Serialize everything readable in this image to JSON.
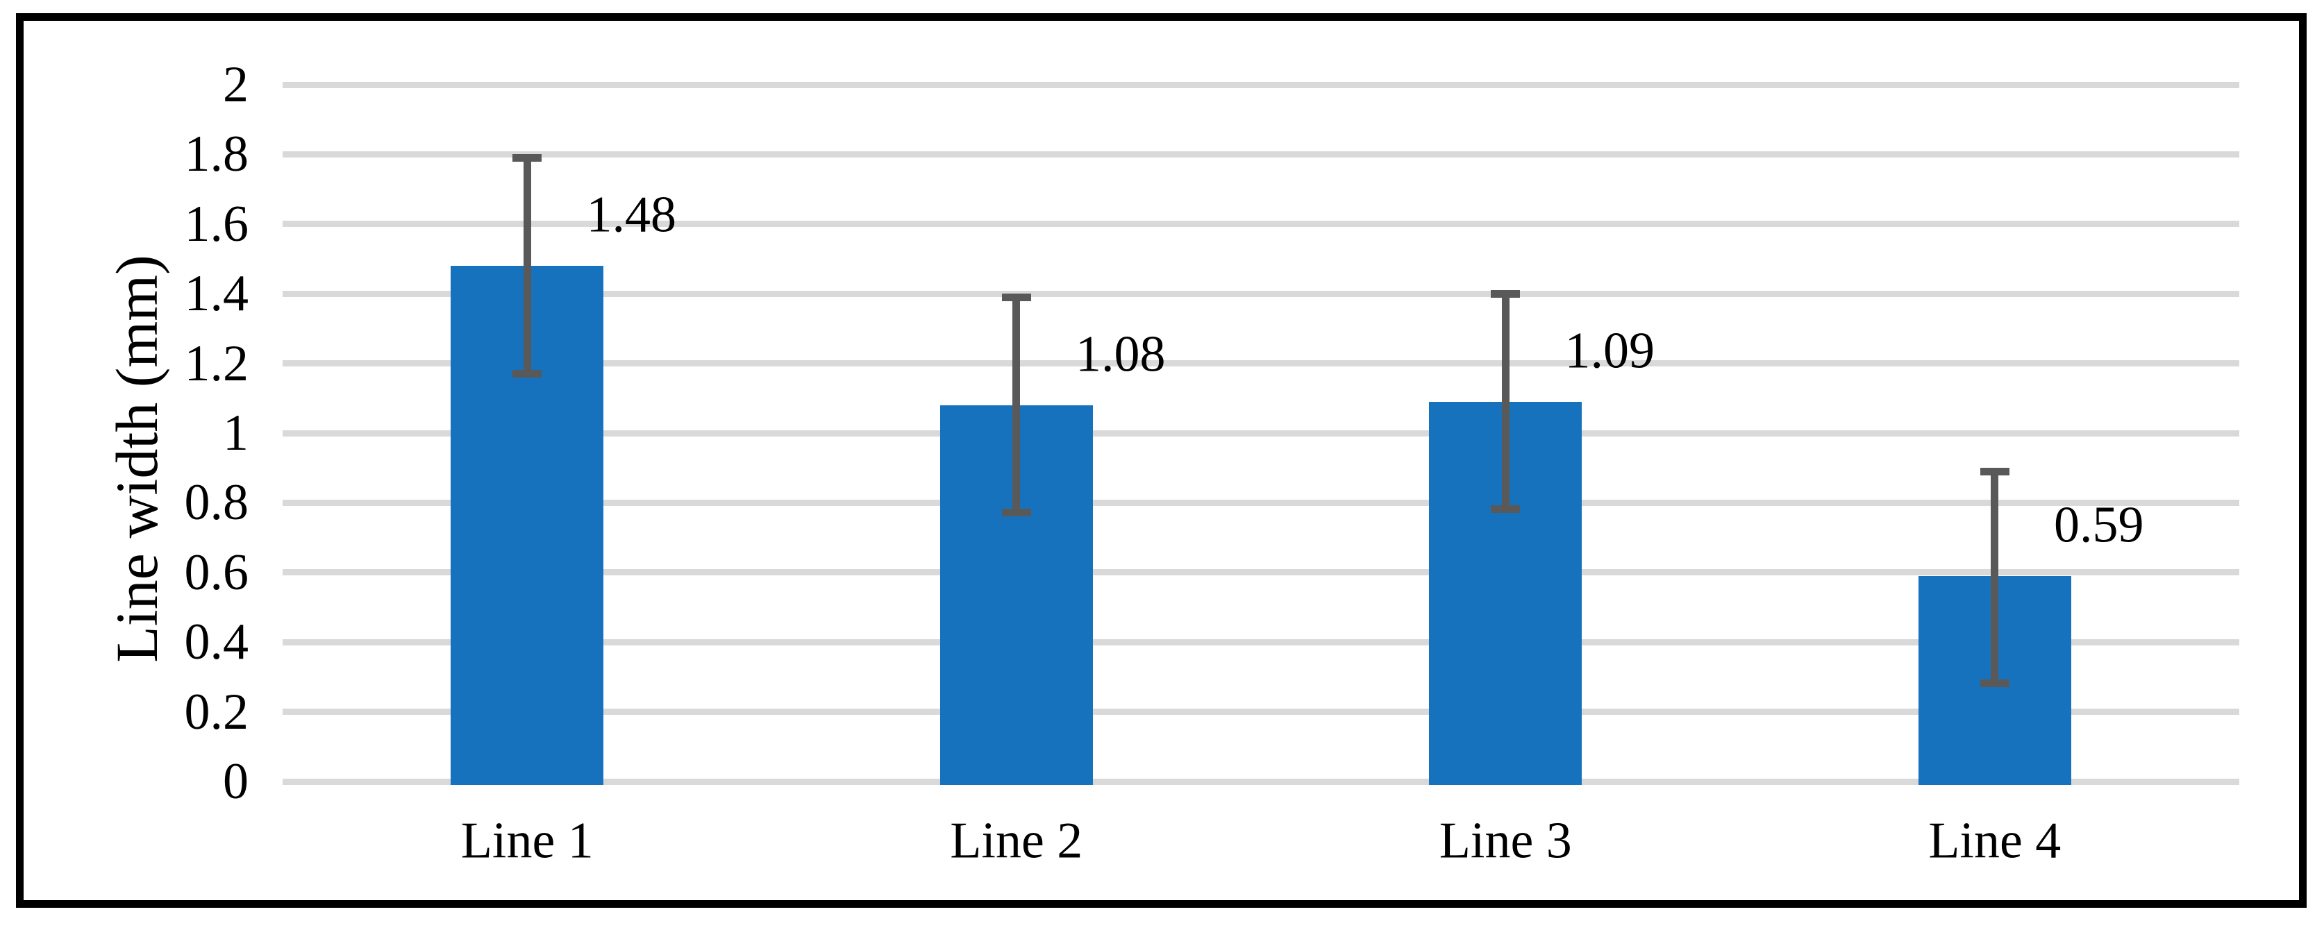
{
  "chart_data": {
    "type": "bar",
    "title": "",
    "categories": [
      "Line 1",
      "Line 2",
      "Line 3",
      "Line 4"
    ],
    "values": [
      1.48,
      1.08,
      1.09,
      0.59
    ],
    "data_labels": [
      "1.48",
      "1.08",
      "1.09",
      "0.59"
    ],
    "error_bars": {
      "upper": [
        1.8,
        1.4,
        1.41,
        0.9
      ],
      "lower": [
        1.16,
        0.76,
        0.77,
        0.27
      ]
    },
    "xlabel": "",
    "ylabel": "Line width (mm)",
    "ylim": [
      0,
      2
    ],
    "yticks": [
      {
        "value": 0,
        "label": "0"
      },
      {
        "value": 0.2,
        "label": "0.2"
      },
      {
        "value": 0.4,
        "label": "0.4"
      },
      {
        "value": 0.6,
        "label": "0.6"
      },
      {
        "value": 0.8,
        "label": "0.8"
      },
      {
        "value": 1,
        "label": "1"
      },
      {
        "value": 1.2,
        "label": "1.2"
      },
      {
        "value": 1.4,
        "label": "1.4"
      },
      {
        "value": 1.6,
        "label": "1.6"
      },
      {
        "value": 1.8,
        "label": "1.8"
      },
      {
        "value": 2,
        "label": "2"
      }
    ],
    "grid": "horizontal",
    "legend": "none",
    "colors": {
      "bar": "#1772BE",
      "error_bar": "#595959",
      "gridline": "#D9D9D9",
      "text": "#000000",
      "frame_border": "#000000",
      "background": "#FFFFFF"
    }
  }
}
